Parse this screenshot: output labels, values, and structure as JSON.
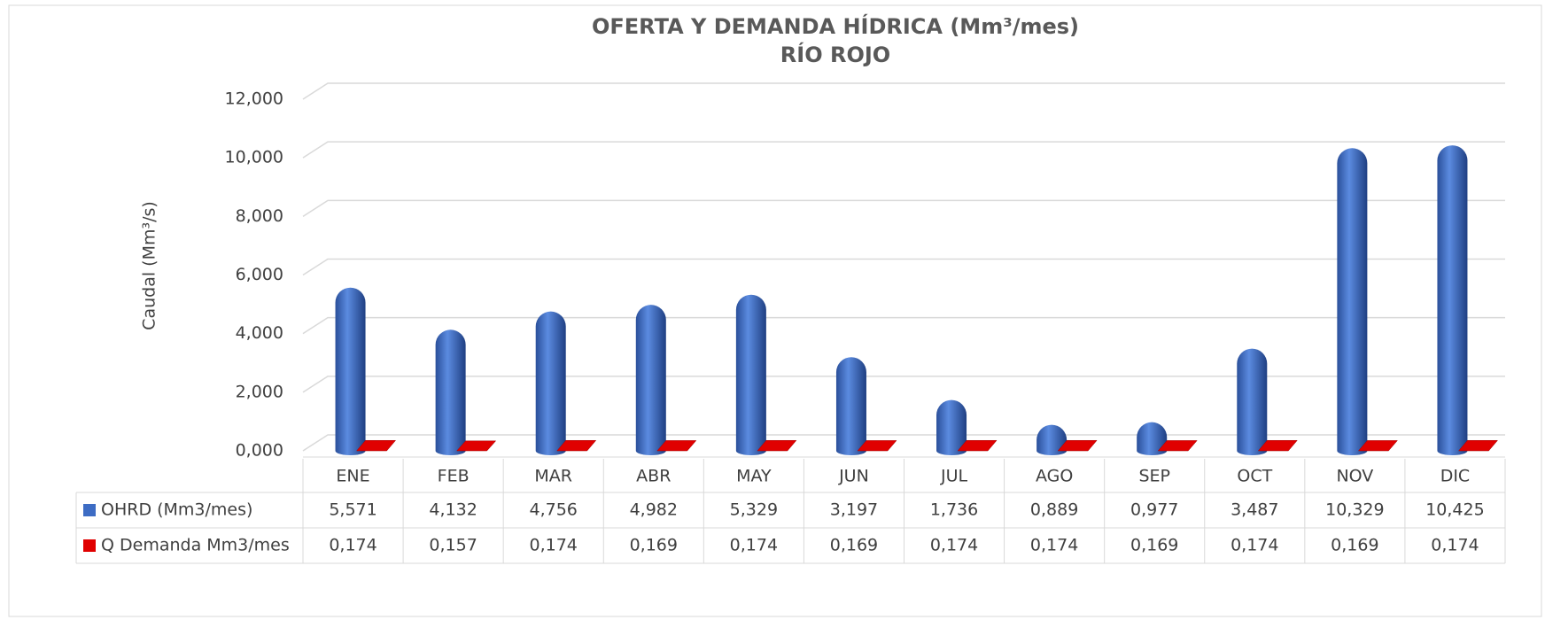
{
  "chart_data": {
    "type": "bar3d",
    "title": "OFERTA Y DEMANDA HÍDRICA (Mm³/mes)",
    "subtitle": "RÍO ROJO",
    "y_label": "Caudal (Mm³/s)",
    "categories": [
      "ENE",
      "FEB",
      "MAR",
      "ABR",
      "MAY",
      "JUN",
      "JUL",
      "AGO",
      "SEP",
      "OCT",
      "NOV",
      "DIC"
    ],
    "series": [
      {
        "name": "OHRD (Mm3/mes)",
        "color": "#3d6cc4",
        "values": [
          5.571,
          4.132,
          4.756,
          4.982,
          5.329,
          3.197,
          1.736,
          0.889,
          0.977,
          3.487,
          10.329,
          10.425
        ],
        "value_labels": [
          "5,571",
          "4,132",
          "4,756",
          "4,982",
          "5,329",
          "3,197",
          "1,736",
          "0,889",
          "0,977",
          "3,487",
          "10,329",
          "10,425"
        ]
      },
      {
        "name": "Q Demanda Mm3/mes",
        "color": "#e00000",
        "values": [
          0.174,
          0.157,
          0.174,
          0.169,
          0.174,
          0.169,
          0.174,
          0.174,
          0.169,
          0.174,
          0.169,
          0.174
        ],
        "value_labels": [
          "0,174",
          "0,157",
          "0,174",
          "0,169",
          "0,174",
          "0,169",
          "0,174",
          "0,174",
          "0,169",
          "0,174",
          "0,169",
          "0,174"
        ]
      }
    ],
    "ylim": [
      0,
      12
    ],
    "yticks": [
      {
        "value": 0,
        "label": "0,000"
      },
      {
        "value": 2,
        "label": "2,000"
      },
      {
        "value": 4,
        "label": "4,000"
      },
      {
        "value": 6,
        "label": "6,000"
      },
      {
        "value": 8,
        "label": "8,000"
      },
      {
        "value": 10,
        "label": "10,000"
      },
      {
        "value": 12,
        "label": "12,000"
      }
    ],
    "grid": true
  }
}
